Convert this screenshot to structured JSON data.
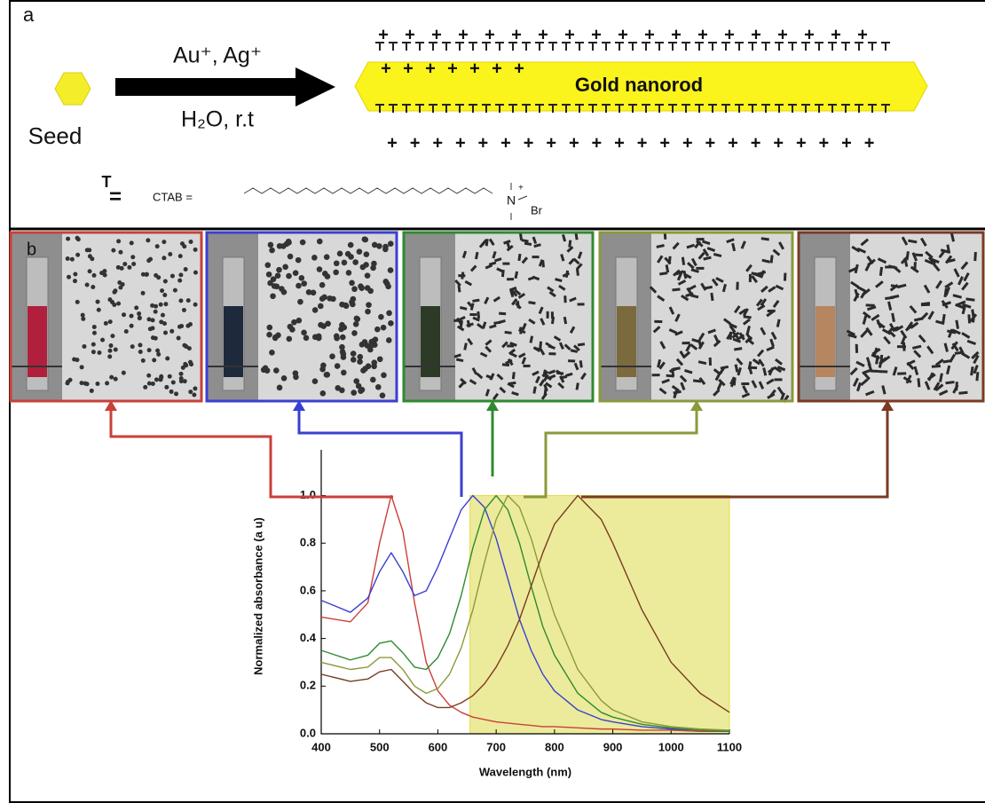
{
  "panel_a": {
    "label": "a",
    "seed": "Seed",
    "reagents": "Au⁺, Ag⁺",
    "conditions": "H₂O, r.t",
    "product": "Gold nanorod",
    "charge": "+",
    "equals": "=",
    "ctab": "CTAB =",
    "nitrogen": "N",
    "bromide": "Br"
  },
  "panel_b": {
    "label": "b"
  },
  "chart_data": {
    "type": "line",
    "xlabel": "Wavelength (nm)",
    "ylabel": "Normalized absorbance (a u)",
    "x": [
      400,
      450,
      480,
      500,
      520,
      540,
      560,
      580,
      600,
      620,
      640,
      660,
      680,
      700,
      720,
      740,
      760,
      780,
      800,
      840,
      880,
      900,
      950,
      1000,
      1050,
      1100
    ],
    "series": [
      {
        "color": "#c9403a",
        "values": [
          0.49,
          0.47,
          0.55,
          0.8,
          1.0,
          0.85,
          0.55,
          0.3,
          0.18,
          0.12,
          0.09,
          0.07,
          0.06,
          0.05,
          0.045,
          0.04,
          0.035,
          0.03,
          0.03,
          0.025,
          0.02,
          0.02,
          0.015,
          0.015,
          0.01,
          0.01
        ]
      },
      {
        "color": "#3b3fd1",
        "values": [
          0.56,
          0.51,
          0.57,
          0.68,
          0.76,
          0.68,
          0.58,
          0.6,
          0.7,
          0.82,
          0.94,
          1.0,
          0.95,
          0.82,
          0.65,
          0.48,
          0.35,
          0.25,
          0.18,
          0.1,
          0.06,
          0.05,
          0.03,
          0.02,
          0.015,
          0.01
        ]
      },
      {
        "color": "#2f8a2f",
        "values": [
          0.35,
          0.31,
          0.33,
          0.38,
          0.39,
          0.34,
          0.28,
          0.27,
          0.32,
          0.42,
          0.58,
          0.78,
          0.94,
          1.0,
          0.94,
          0.8,
          0.62,
          0.45,
          0.33,
          0.17,
          0.09,
          0.07,
          0.04,
          0.025,
          0.015,
          0.01
        ]
      },
      {
        "color": "#8a9a3a",
        "values": [
          0.3,
          0.27,
          0.28,
          0.32,
          0.32,
          0.27,
          0.2,
          0.17,
          0.19,
          0.25,
          0.36,
          0.52,
          0.72,
          0.9,
          1.0,
          0.95,
          0.82,
          0.65,
          0.5,
          0.27,
          0.14,
          0.1,
          0.05,
          0.03,
          0.02,
          0.015
        ]
      },
      {
        "color": "#7a3b22",
        "values": [
          0.25,
          0.22,
          0.23,
          0.26,
          0.27,
          0.22,
          0.17,
          0.13,
          0.11,
          0.11,
          0.13,
          0.16,
          0.21,
          0.28,
          0.37,
          0.48,
          0.62,
          0.76,
          0.88,
          1.0,
          0.9,
          0.8,
          0.52,
          0.3,
          0.17,
          0.09
        ]
      }
    ],
    "shaded_region": [
      655,
      1100
    ],
    "xlim": [
      400,
      1100
    ],
    "ylim": [
      0,
      1.08
    ],
    "xticks": [
      400,
      500,
      600,
      700,
      800,
      900,
      1000,
      1100
    ],
    "yticks": [
      {
        "value": 0,
        "label": "0.0"
      },
      0.2,
      0.4,
      0.6,
      0.8,
      {
        "value": 1,
        "label": "1.0"
      }
    ]
  }
}
